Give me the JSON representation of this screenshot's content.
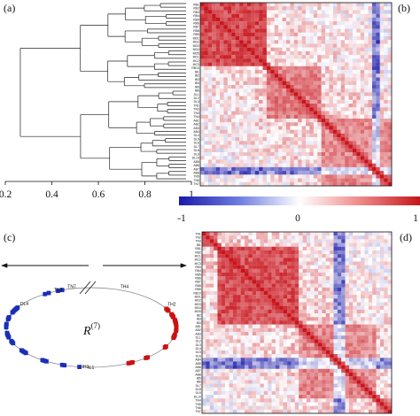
{
  "panels": {
    "a": "(a)",
    "b": "(b)",
    "c": "(c)",
    "d": "(d)"
  },
  "dendrogram_axis": {
    "ticks": [
      "0.2",
      "0.4",
      "0.6",
      "0.8",
      "1"
    ],
    "tick_values": [
      0.2,
      0.4,
      0.6,
      0.8,
      1.0
    ]
  },
  "colorbar": {
    "ticks": [
      "-1",
      "0",
      "1"
    ],
    "tick_values": [
      -1,
      0,
      1
    ],
    "colors": {
      "neg": "#1a1aaa",
      "mid": "#ffffff",
      "pos": "#c4161c"
    }
  },
  "ring": {
    "label_main": "R",
    "label_sup": "(7)",
    "blue_color": "#1a2fb8",
    "red_color": "#cc1111",
    "visible_labels": [
      "TN7",
      "TN3",
      "DL4",
      "TH4",
      "TH2",
      "IH1",
      "IL1"
    ]
  },
  "matrix_labels_b": [
    "RB1",
    "RB2",
    "RB3",
    "RB4",
    "RB5",
    "RB6",
    "RB7",
    "RB8",
    "RB9",
    "MD1",
    "MD2",
    "MD3",
    "MD4",
    "MD5",
    "MC1",
    "MC2",
    "MC3",
    "RB10",
    "IB1",
    "IB2",
    "IB3",
    "IB4",
    "IB5",
    "IB6",
    "DL1",
    "DL2",
    "DL3",
    "TN1",
    "TN2",
    "TN3",
    "TN4",
    "AB1",
    "AB2",
    "AB3",
    "AB4",
    "DL4",
    "DL5",
    "DL6",
    "DL7",
    "DL8",
    "DL9",
    "DL10",
    "AB5",
    "AB6",
    "AB7",
    "AB8",
    "TN5",
    "TN6",
    "TN7"
  ],
  "matrix_labels_d": [
    "TN1",
    "TN2",
    "TN3",
    "IB1",
    "RB1",
    "RB2",
    "MC1",
    "MC2",
    "MC3",
    "RB3",
    "RB4",
    "RB5",
    "RB6",
    "RB7",
    "RB8",
    "RB9",
    "RB10",
    "MD1",
    "MD2",
    "MD3",
    "MD4",
    "MD5",
    "IB2",
    "IB3",
    "IB4",
    "AB1",
    "AB2",
    "AB3",
    "DL1",
    "DL2",
    "DL3",
    "DL4",
    "DL5",
    "DL6",
    "AB4",
    "AB5",
    "AB6",
    "AB7",
    "AB8",
    "IB5",
    "IB6",
    "DL7",
    "DL8",
    "DL9",
    "DL10",
    "TN4",
    "TN5",
    "TN6",
    "TN7"
  ]
}
